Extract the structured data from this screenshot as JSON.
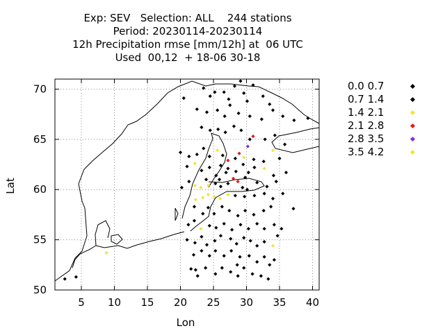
{
  "title_lines": [
    "Exp: SEV   Selection: ALL    244 stations",
    "Period: 20230114-20230114",
    "12h Precipitation rmse [mm/12h] at  06 UTC",
    "Used  00,12  + 18-06 30-18"
  ],
  "chart_data": {
    "type": "scatter",
    "xlabel": "Lon",
    "ylabel": "Lat",
    "xlim": [
      1,
      41
    ],
    "ylim": [
      50,
      71
    ],
    "xticks": [
      5,
      10,
      15,
      20,
      25,
      30,
      35,
      40
    ],
    "yticks": [
      50,
      55,
      60,
      65,
      70
    ],
    "grid": true,
    "legend_position": "right",
    "classes": [
      {
        "label": "0.0 0.7",
        "color": "#000000"
      },
      {
        "label": "0.7 1.4",
        "color": "#000000"
      },
      {
        "label": "1.4 2.1",
        "color": "#f0e442"
      },
      {
        "label": "2.1 2.8",
        "color": "#e41a1c"
      },
      {
        "label": "2.8 3.5",
        "color": "#8a2be2"
      },
      {
        "label": "3.5 4.2",
        "color": "#f0e442"
      }
    ],
    "points": [
      [
        2.5,
        51.1,
        0
      ],
      [
        4.2,
        51.3,
        0
      ],
      [
        8.8,
        53.7,
        2
      ],
      [
        20.5,
        69.1,
        0
      ],
      [
        23.5,
        70.1,
        0
      ],
      [
        24.5,
        69.3,
        0
      ],
      [
        25.2,
        69.7,
        0
      ],
      [
        26.6,
        69.7,
        0
      ],
      [
        27.3,
        69.0,
        0
      ],
      [
        28.2,
        70.3,
        0
      ],
      [
        29.1,
        70.8,
        0
      ],
      [
        29.6,
        69.6,
        0
      ],
      [
        30.1,
        68.8,
        0
      ],
      [
        31.0,
        70.4,
        0
      ],
      [
        32.5,
        69.3,
        0
      ],
      [
        33.5,
        68.5,
        0
      ],
      [
        22.5,
        68.0,
        0
      ],
      [
        24.0,
        67.7,
        0
      ],
      [
        25.6,
        67.9,
        0
      ],
      [
        26.7,
        67.3,
        0
      ],
      [
        27.5,
        68.4,
        0
      ],
      [
        28.8,
        67.6,
        0
      ],
      [
        30.5,
        67.3,
        0
      ],
      [
        32.3,
        67.0,
        0
      ],
      [
        34.0,
        67.9,
        0
      ],
      [
        35.5,
        67.3,
        0
      ],
      [
        37.2,
        66.9,
        0
      ],
      [
        39.3,
        67.1,
        0
      ],
      [
        23.2,
        66.2,
        0
      ],
      [
        24.5,
        65.9,
        0
      ],
      [
        25.7,
        66.0,
        0
      ],
      [
        26.8,
        65.7,
        0
      ],
      [
        28.1,
        66.3,
        0
      ],
      [
        29.2,
        65.9,
        0
      ],
      [
        30.5,
        65.0,
        0
      ],
      [
        31.0,
        65.3,
        3
      ],
      [
        32.8,
        65.0,
        0
      ],
      [
        34.3,
        65.4,
        0
      ],
      [
        35.8,
        64.5,
        0
      ],
      [
        30.2,
        64.3,
        4
      ],
      [
        20.0,
        63.7,
        0
      ],
      [
        21.3,
        63.3,
        0
      ],
      [
        22.5,
        63.5,
        0
      ],
      [
        23.5,
        64.1,
        0
      ],
      [
        24.4,
        63.3,
        0
      ],
      [
        25.6,
        63.9,
        2
      ],
      [
        26.4,
        63.4,
        0
      ],
      [
        27.2,
        62.9,
        3
      ],
      [
        28.3,
        63.1,
        0
      ],
      [
        28.9,
        63.6,
        3
      ],
      [
        29.6,
        63.2,
        2
      ],
      [
        31.1,
        63.0,
        0
      ],
      [
        32.6,
        62.8,
        0
      ],
      [
        34.0,
        63.9,
        2
      ],
      [
        35.0,
        63.1,
        0
      ],
      [
        21.0,
        62.3,
        0
      ],
      [
        22.2,
        62.6,
        2
      ],
      [
        23.2,
        61.9,
        0
      ],
      [
        24.4,
        62.2,
        0
      ],
      [
        25.4,
        61.4,
        0
      ],
      [
        26.1,
        62.4,
        0
      ],
      [
        27.2,
        62.1,
        0
      ],
      [
        28.4,
        61.8,
        0
      ],
      [
        29.5,
        62.5,
        0
      ],
      [
        30.3,
        61.7,
        0
      ],
      [
        31.2,
        62.2,
        0
      ],
      [
        32.7,
        62.1,
        2
      ],
      [
        34.1,
        61.4,
        0
      ],
      [
        36.0,
        61.7,
        0
      ],
      [
        20.2,
        60.2,
        0
      ],
      [
        21.3,
        60.8,
        0
      ],
      [
        22.2,
        60.4,
        2
      ],
      [
        23.1,
        60.2,
        2
      ],
      [
        24.2,
        60.4,
        2
      ],
      [
        25.3,
        60.6,
        0
      ],
      [
        26.1,
        60.3,
        0
      ],
      [
        27.2,
        60.6,
        0
      ],
      [
        28.0,
        61.1,
        3
      ],
      [
        28.7,
        60.8,
        3
      ],
      [
        29.4,
        60.2,
        0
      ],
      [
        30.1,
        60.0,
        0
      ],
      [
        31.6,
        60.7,
        0
      ],
      [
        33.1,
        60.3,
        0
      ],
      [
        34.5,
        60.8,
        0
      ],
      [
        22.3,
        59.0,
        2
      ],
      [
        23.4,
        59.2,
        2
      ],
      [
        24.2,
        59.5,
        2
      ],
      [
        25.1,
        59.3,
        2
      ],
      [
        26.0,
        59.1,
        2
      ],
      [
        27.2,
        59.5,
        2
      ],
      [
        28.3,
        59.4,
        0
      ],
      [
        29.7,
        59.3,
        0
      ],
      [
        31.2,
        59.4,
        0
      ],
      [
        32.7,
        59.6,
        0
      ],
      [
        34.0,
        59.1,
        0
      ],
      [
        35.5,
        59.6,
        0
      ],
      [
        37.1,
        58.1,
        0
      ],
      [
        22.1,
        58.3,
        0
      ],
      [
        23.4,
        57.6,
        0
      ],
      [
        24.2,
        58.2,
        0
      ],
      [
        25.1,
        57.6,
        0
      ],
      [
        26.3,
        58.3,
        0
      ],
      [
        27.4,
        57.9,
        0
      ],
      [
        28.7,
        57.4,
        0
      ],
      [
        29.8,
        57.9,
        0
      ],
      [
        31.1,
        57.5,
        0
      ],
      [
        32.6,
        57.9,
        0
      ],
      [
        33.7,
        58.3,
        0
      ],
      [
        21.2,
        56.5,
        0
      ],
      [
        22.1,
        56.9,
        0
      ],
      [
        23.1,
        56.1,
        2
      ],
      [
        24.4,
        56.4,
        0
      ],
      [
        25.4,
        56.2,
        0
      ],
      [
        26.6,
        56.6,
        0
      ],
      [
        27.8,
        56.0,
        0
      ],
      [
        29.1,
        56.5,
        0
      ],
      [
        30.3,
        56.1,
        0
      ],
      [
        31.6,
        56.6,
        0
      ],
      [
        32.7,
        56.1,
        0
      ],
      [
        34.2,
        56.5,
        0
      ],
      [
        35.3,
        56.1,
        0
      ],
      [
        21.0,
        55.0,
        0
      ],
      [
        22.2,
        54.7,
        0
      ],
      [
        23.2,
        55.3,
        0
      ],
      [
        24.0,
        54.5,
        0
      ],
      [
        25.2,
        54.9,
        0
      ],
      [
        26.1,
        55.4,
        0
      ],
      [
        27.6,
        55.1,
        0
      ],
      [
        28.5,
        54.6,
        0
      ],
      [
        29.6,
        55.2,
        0
      ],
      [
        30.6,
        54.9,
        0
      ],
      [
        31.6,
        54.4,
        0
      ],
      [
        32.7,
        54.8,
        0
      ],
      [
        34.0,
        54.4,
        2
      ],
      [
        34.7,
        55.4,
        0
      ],
      [
        22.0,
        53.5,
        0
      ],
      [
        23.2,
        53.9,
        0
      ],
      [
        24.4,
        53.4,
        0
      ],
      [
        25.3,
        53.9,
        0
      ],
      [
        26.6,
        53.4,
        0
      ],
      [
        27.7,
        53.9,
        0
      ],
      [
        29.0,
        53.3,
        0
      ],
      [
        30.4,
        53.4,
        0
      ],
      [
        31.6,
        52.8,
        0
      ],
      [
        32.7,
        53.3,
        0
      ],
      [
        33.5,
        52.5,
        0
      ],
      [
        34.2,
        53.0,
        0
      ],
      [
        21.6,
        52.1,
        0
      ],
      [
        22.6,
        51.4,
        0
      ],
      [
        23.8,
        52.2,
        0
      ],
      [
        25.3,
        51.6,
        0
      ],
      [
        26.3,
        52.2,
        0
      ],
      [
        27.6,
        51.8,
        0
      ],
      [
        28.7,
        51.4,
        0
      ],
      [
        29.6,
        52.2,
        0
      ],
      [
        30.9,
        51.6,
        0
      ],
      [
        32.2,
        51.4,
        0
      ],
      [
        33.3,
        51.1,
        0
      ],
      [
        22.3,
        52.0,
        0
      ],
      [
        28.6,
        52.5,
        0
      ],
      [
        25.9,
        61.0,
        0
      ],
      [
        29.8,
        61.2,
        0
      ],
      [
        23.9,
        61.0,
        0
      ],
      [
        26.9,
        61.7,
        0
      ]
    ]
  }
}
